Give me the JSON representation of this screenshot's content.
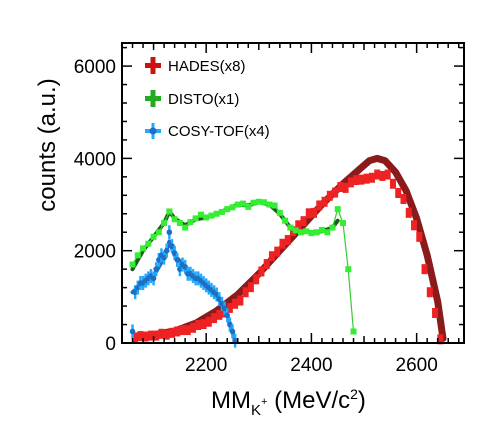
{
  "chart_data": {
    "type": "scatter",
    "title": "",
    "xlabel": {
      "main": "MM",
      "sub_main": "K",
      "sub_sup": "+",
      "unit_open": " (MeV/c",
      "unit_sup": "2",
      "unit_close": ")"
    },
    "ylabel": "counts (a.u.)",
    "xlim": [
      2040,
      2690
    ],
    "ylim": [
      0,
      6500
    ],
    "xticks": [
      2200,
      2400,
      2600
    ],
    "xtick_labels": [
      "2200",
      "2400",
      "2600"
    ],
    "yticks": [
      0,
      2000,
      4000,
      6000
    ],
    "ytick_labels": [
      "0",
      "2000",
      "4000",
      "6000"
    ],
    "grid": false,
    "legend_position": "top-left",
    "legend": [
      {
        "label": "HADES(x8)",
        "color": "#cc1111"
      },
      {
        "label": "DISTO(x1)",
        "color": "#22aa22"
      },
      {
        "label": "COSY-TOF(x4)",
        "color": "#22aaff"
      }
    ],
    "series": [
      {
        "name": "HADES(x8)",
        "color": "#ee2222",
        "x": [
          2065,
          2075,
          2085,
          2095,
          2105,
          2115,
          2125,
          2135,
          2145,
          2155,
          2165,
          2175,
          2185,
          2195,
          2205,
          2215,
          2225,
          2235,
          2245,
          2255,
          2265,
          2275,
          2285,
          2295,
          2305,
          2315,
          2325,
          2335,
          2345,
          2355,
          2365,
          2375,
          2385,
          2395,
          2405,
          2415,
          2425,
          2435,
          2445,
          2455,
          2465,
          2475,
          2485,
          2495,
          2505,
          2515,
          2525,
          2535,
          2545,
          2555,
          2565,
          2575,
          2585,
          2595,
          2605,
          2615,
          2625,
          2635,
          2645
        ],
        "y": [
          120,
          150,
          140,
          160,
          160,
          200,
          180,
          220,
          250,
          280,
          280,
          330,
          390,
          410,
          460,
          540,
          610,
          660,
          760,
          850,
          920,
          1100,
          1210,
          1380,
          1550,
          1710,
          1880,
          1980,
          2150,
          2230,
          2420,
          2550,
          2640,
          2810,
          2820,
          2980,
          3060,
          3190,
          3260,
          3380,
          3360,
          3480,
          3530,
          3540,
          3560,
          3580,
          3650,
          3620,
          3650,
          3450,
          3250,
          3120,
          2820,
          2550,
          2300,
          1600,
          1100,
          650,
          80
        ]
      },
      {
        "name": "DISTO(x1)",
        "color": "#33ee33",
        "x": [
          2060,
          2070,
          2080,
          2090,
          2100,
          2110,
          2120,
          2130,
          2140,
          2150,
          2160,
          2170,
          2180,
          2190,
          2200,
          2210,
          2220,
          2230,
          2240,
          2250,
          2260,
          2270,
          2280,
          2290,
          2300,
          2310,
          2320,
          2330,
          2340,
          2350,
          2360,
          2370,
          2380,
          2390,
          2400,
          2410,
          2420,
          2430,
          2440,
          2450,
          2460,
          2470,
          2480
        ],
        "y": [
          1700,
          1900,
          2050,
          2150,
          2300,
          2400,
          2600,
          2850,
          2680,
          2600,
          2500,
          2620,
          2700,
          2780,
          2720,
          2760,
          2800,
          2840,
          2900,
          2940,
          3000,
          3020,
          2950,
          3040,
          3060,
          3050,
          3000,
          2980,
          2820,
          2650,
          2500,
          2440,
          2400,
          2420,
          2380,
          2400,
          2450,
          2400,
          2500,
          2900,
          2600,
          1600,
          250
        ]
      },
      {
        "name": "COSY-TOF(x4)",
        "color": "#22aaff",
        "x": [
          2060,
          2065,
          2070,
          2075,
          2080,
          2085,
          2090,
          2095,
          2100,
          2105,
          2110,
          2115,
          2120,
          2125,
          2130,
          2135,
          2140,
          2145,
          2150,
          2155,
          2160,
          2165,
          2170,
          2175,
          2180,
          2185,
          2190,
          2195,
          2200,
          2205,
          2210,
          2215,
          2220,
          2225,
          2230,
          2235,
          2240,
          2245,
          2250,
          2255
        ],
        "y": [
          250,
          1100,
          1200,
          1300,
          1300,
          1350,
          1400,
          1450,
          1400,
          1600,
          1800,
          1900,
          1850,
          2000,
          2400,
          2100,
          1950,
          1800,
          1600,
          1700,
          1650,
          1500,
          1500,
          1450,
          1400,
          1400,
          1350,
          1300,
          1250,
          1200,
          1150,
          1100,
          1050,
          950,
          850,
          750,
          600,
          400,
          250,
          50
        ]
      }
    ],
    "fit_curves": [
      {
        "for": "HADES(x8)",
        "color": "#8b1a1a",
        "x": [
          2065,
          2100,
          2140,
          2180,
          2220,
          2260,
          2300,
          2340,
          2380,
          2420,
          2460,
          2490,
          2510,
          2525,
          2540,
          2560,
          2580,
          2600,
          2620,
          2640,
          2650
        ],
        "y": [
          150,
          180,
          260,
          430,
          700,
          1050,
          1500,
          2000,
          2500,
          3000,
          3450,
          3750,
          3950,
          4000,
          3950,
          3700,
          3300,
          2700,
          1900,
          900,
          100
        ]
      },
      {
        "for": "DISTO(x1)",
        "color": "#1a5c1a",
        "x": [
          2060,
          2080,
          2100,
          2120,
          2130,
          2140,
          2160,
          2180,
          2200,
          2220,
          2240,
          2260,
          2280,
          2300,
          2320,
          2340,
          2360,
          2380,
          2400,
          2420,
          2440,
          2450
        ],
        "y": [
          1600,
          2000,
          2300,
          2600,
          2850,
          2700,
          2550,
          2680,
          2720,
          2800,
          2900,
          3000,
          2980,
          3050,
          3000,
          2800,
          2500,
          2420,
          2400,
          2420,
          2500,
          2650
        ]
      },
      {
        "for": "COSY-TOF(x4)",
        "color": "#1d6fc4",
        "x": [
          2060,
          2080,
          2100,
          2120,
          2130,
          2140,
          2160,
          2180,
          2200,
          2220,
          2240,
          2255
        ],
        "y": [
          1100,
          1300,
          1450,
          1850,
          2200,
          1900,
          1650,
          1400,
          1250,
          1050,
          600,
          50
        ]
      }
    ]
  }
}
